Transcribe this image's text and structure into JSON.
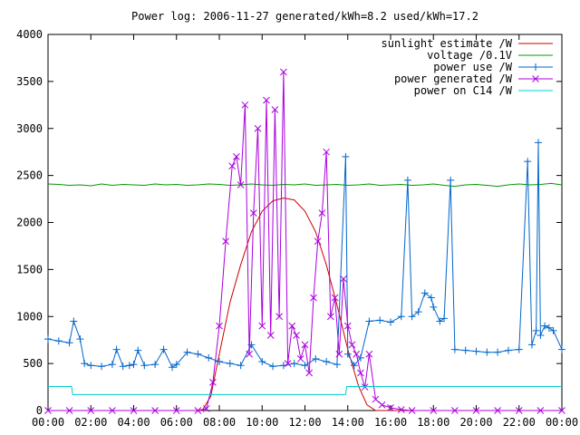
{
  "chart_data": {
    "type": "line",
    "title": "Power log: 2006-11-27 generated/kWh=8.2 used/kWh=17.2",
    "xlabel": "",
    "ylabel": "",
    "xlim": [
      0,
      24
    ],
    "ylim": [
      0,
      4000
    ],
    "grid": false,
    "legend_placement": "top-right",
    "x_tick_labels": [
      "00:00",
      "02:00",
      "04:00",
      "06:00",
      "08:00",
      "10:00",
      "12:00",
      "14:00",
      "16:00",
      "18:00",
      "20:00",
      "22:00",
      "00:00"
    ],
    "x_ticks": [
      0,
      2,
      4,
      6,
      8,
      10,
      12,
      14,
      16,
      18,
      20,
      22,
      24
    ],
    "y_ticks": [
      0,
      500,
      1000,
      1500,
      2000,
      2500,
      3000,
      3500,
      4000
    ],
    "series": [
      {
        "name": "sunlight estimate /W",
        "color": "#cc0000",
        "marker": "none",
        "x": [
          0,
          7.2,
          7.6,
          8.0,
          8.5,
          9.0,
          9.5,
          10.0,
          10.5,
          11.0,
          11.5,
          12.0,
          12.5,
          13.0,
          13.5,
          14.0,
          14.5,
          14.9,
          15.3,
          24
        ],
        "y": [
          0,
          0,
          150,
          600,
          1150,
          1550,
          1900,
          2120,
          2230,
          2260,
          2240,
          2120,
          1900,
          1550,
          1120,
          650,
          260,
          60,
          0,
          0
        ]
      },
      {
        "name": "voltage /0.1V",
        "color": "#009900",
        "marker": "none",
        "x": [
          0,
          0.5,
          1,
          1.5,
          2,
          2.5,
          3,
          3.5,
          4,
          4.5,
          5,
          5.5,
          6,
          6.5,
          7,
          7.5,
          8,
          8.5,
          9,
          9.5,
          10,
          10.5,
          11,
          11.5,
          12,
          12.5,
          13,
          13.5,
          14,
          14.5,
          15,
          15.5,
          16,
          16.5,
          17,
          17.5,
          18,
          18.5,
          19,
          19.5,
          20,
          20.5,
          21,
          21.5,
          22,
          22.5,
          23,
          23.5,
          24
        ],
        "y": [
          2410,
          2405,
          2395,
          2400,
          2390,
          2410,
          2395,
          2405,
          2400,
          2395,
          2410,
          2400,
          2405,
          2395,
          2400,
          2410,
          2405,
          2395,
          2400,
          2410,
          2400,
          2395,
          2405,
          2400,
          2410,
          2395,
          2400,
          2405,
          2395,
          2400,
          2410,
          2395,
          2400,
          2405,
          2395,
          2400,
          2410,
          2395,
          2385,
          2400,
          2405,
          2395,
          2385,
          2400,
          2410,
          2400,
          2405,
          2415,
          2400
        ]
      },
      {
        "name": "power use /W",
        "color": "#0066cc",
        "marker": "plus",
        "x": [
          0,
          0.5,
          1.0,
          1.2,
          1.5,
          1.7,
          2.0,
          2.5,
          3.0,
          3.2,
          3.5,
          3.8,
          4.0,
          4.2,
          4.5,
          5.0,
          5.4,
          5.8,
          6.0,
          6.5,
          7.0,
          7.5,
          8.0,
          8.5,
          9.0,
          9.5,
          10.0,
          10.5,
          11.0,
          11.5,
          12.0,
          12.5,
          13.0,
          13.5,
          13.9,
          14.0,
          14.3,
          14.6,
          15.0,
          15.5,
          16.0,
          16.5,
          16.8,
          17.0,
          17.3,
          17.6,
          17.9,
          18.0,
          18.3,
          18.5,
          18.8,
          19.0,
          19.5,
          20.0,
          20.5,
          21.0,
          21.5,
          22.0,
          22.4,
          22.6,
          22.8,
          22.9,
          23.0,
          23.2,
          23.4,
          23.6,
          24.0
        ],
        "y": [
          760,
          740,
          720,
          950,
          760,
          500,
          480,
          470,
          490,
          650,
          470,
          480,
          490,
          640,
          480,
          490,
          650,
          460,
          490,
          620,
          600,
          560,
          520,
          500,
          480,
          700,
          520,
          470,
          480,
          500,
          480,
          550,
          520,
          490,
          2700,
          600,
          480,
          560,
          950,
          960,
          940,
          1000,
          2450,
          1000,
          1050,
          1250,
          1200,
          1100,
          950,
          980,
          2450,
          650,
          640,
          630,
          620,
          620,
          640,
          650,
          2650,
          700,
          850,
          2850,
          800,
          900,
          880,
          850,
          650
        ]
      },
      {
        "name": "power generated /W",
        "color": "#aa00dd",
        "marker": "x",
        "x": [
          0,
          1,
          2,
          3,
          4,
          5,
          6,
          7,
          7.4,
          7.7,
          8.0,
          8.3,
          8.6,
          8.8,
          9.0,
          9.2,
          9.4,
          9.6,
          9.8,
          10.0,
          10.2,
          10.4,
          10.6,
          10.8,
          11.0,
          11.2,
          11.4,
          11.6,
          11.8,
          12.0,
          12.2,
          12.4,
          12.6,
          12.8,
          13.0,
          13.2,
          13.4,
          13.6,
          13.8,
          14.0,
          14.2,
          14.4,
          14.6,
          14.8,
          15.0,
          15.3,
          15.6,
          16.0,
          16.5,
          17.0,
          18,
          19,
          20,
          21,
          22,
          23,
          24
        ],
        "y": [
          0,
          0,
          0,
          0,
          0,
          0,
          0,
          0,
          20,
          300,
          900,
          1800,
          2600,
          2700,
          2400,
          3250,
          600,
          2100,
          3000,
          900,
          3300,
          800,
          3200,
          1000,
          3600,
          500,
          900,
          800,
          550,
          700,
          400,
          1200,
          1800,
          2100,
          2750,
          1000,
          1200,
          600,
          1400,
          900,
          700,
          600,
          400,
          250,
          600,
          120,
          60,
          30,
          10,
          0,
          0,
          0,
          0,
          0,
          0,
          0,
          0
        ]
      },
      {
        "name": "power on C14 /W",
        "color": "#00cccc",
        "marker": "none",
        "x": [
          0,
          1.1,
          1.15,
          13.9,
          13.95,
          24
        ],
        "y": [
          255,
          255,
          170,
          170,
          255,
          255
        ]
      }
    ]
  }
}
